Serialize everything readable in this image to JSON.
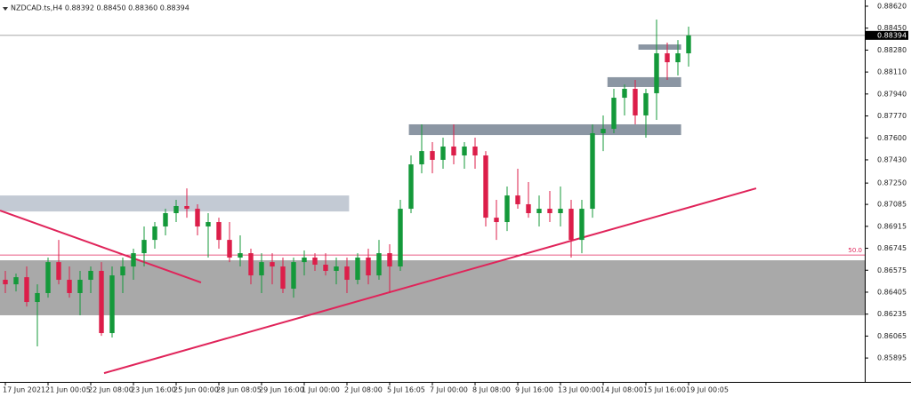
{
  "chart_data": {
    "type": "candlestick",
    "info": "NZDCAD.ts,H4  0.88392 0.88450 0.88360 0.88394",
    "current_price": 0.88394,
    "colors": {
      "up": "#14993a",
      "down": "#dc1e4a",
      "line": "#e0245a"
    },
    "xlim": [
      -0.5,
      80.5
    ],
    "ylim": [
      0.8571,
      0.88668
    ],
    "xticks": [
      {
        "value": 0,
        "label": "17 Jun 2021"
      },
      {
        "value": 4,
        "label": "21 Jun 00:05"
      },
      {
        "value": 8,
        "label": "22 Jun 08:00"
      },
      {
        "value": 12,
        "label": "23 Jun 16:00"
      },
      {
        "value": 16,
        "label": "25 Jun 00:00"
      },
      {
        "value": 20,
        "label": "28 Jun 08:05"
      },
      {
        "value": 24,
        "label": "29 Jun 16:00"
      },
      {
        "value": 28,
        "label": "1 Jul 00:00"
      },
      {
        "value": 32,
        "label": "2 Jul 08:00"
      },
      {
        "value": 36,
        "label": "5 Jul 16:05"
      },
      {
        "value": 40,
        "label": "7 Jul 00:00"
      },
      {
        "value": 44,
        "label": "8 Jul 08:00"
      },
      {
        "value": 48,
        "label": "9 Jul 16:00"
      },
      {
        "value": 52,
        "label": "13 Jul 00:00"
      },
      {
        "value": 56,
        "label": "14 Jul 08:00"
      },
      {
        "value": 60,
        "label": "15 Jul 16:00"
      },
      {
        "value": 64,
        "label": "19 Jul 00:05"
      }
    ],
    "yticks": [
      {
        "value": 0.8862,
        "label": "0.88620"
      },
      {
        "value": 0.8845,
        "label": "0.88450"
      },
      {
        "value": 0.8828,
        "label": "0.88280"
      },
      {
        "value": 0.8811,
        "label": "0.88110"
      },
      {
        "value": 0.8794,
        "label": "0.87940"
      },
      {
        "value": 0.8777,
        "label": "0.87770"
      },
      {
        "value": 0.876,
        "label": "0.87600"
      },
      {
        "value": 0.8743,
        "label": "0.87430"
      },
      {
        "value": 0.8725,
        "label": "0.87250"
      },
      {
        "value": 0.87085,
        "label": "0.87085"
      },
      {
        "value": 0.86915,
        "label": "0.86915"
      },
      {
        "value": 0.86745,
        "label": "0.86745"
      },
      {
        "value": 0.86575,
        "label": "0.86575"
      },
      {
        "value": 0.86405,
        "label": "0.86405"
      },
      {
        "value": 0.86235,
        "label": "0.86235"
      },
      {
        "value": 0.86065,
        "label": "0.86065"
      },
      {
        "value": 0.85895,
        "label": "0.85895"
      }
    ],
    "open": [
      0.86501,
      0.86466,
      0.86521,
      0.86329,
      0.86398,
      0.86638,
      0.86501,
      0.86398,
      0.86501,
      0.8657,
      0.86088,
      0.86535,
      0.86604,
      0.86707,
      0.8681,
      0.86914,
      0.87017,
      0.87072,
      0.87051,
      0.86914,
      0.86948,
      0.8681,
      0.86673,
      0.86707,
      0.86535,
      0.86638,
      0.86604,
      0.86432,
      0.86638,
      0.86673,
      0.86618,
      0.8657,
      0.86604,
      0.86501,
      0.86673,
      0.86535,
      0.86707,
      0.86604,
      0.87051,
      0.87395,
      0.87498,
      0.8743,
      0.87533,
      0.87464,
      0.87533,
      0.87464,
      0.86982,
      0.86948,
      0.87154,
      0.87086,
      0.87017,
      0.87051,
      0.87017,
      0.87051,
      0.8681,
      0.87051,
      0.87636,
      0.8767,
      0.87911,
      0.8798,
      0.87774,
      0.87946,
      0.88255,
      0.88186,
      0.88255
    ],
    "high": [
      0.8657,
      0.86549,
      0.86604,
      0.86466,
      0.86673,
      0.8681,
      0.86604,
      0.8657,
      0.86604,
      0.86638,
      0.86604,
      0.86673,
      0.86742,
      0.86914,
      0.86948,
      0.87051,
      0.8712,
      0.87209,
      0.87086,
      0.87017,
      0.86982,
      0.86948,
      0.86845,
      0.86742,
      0.86707,
      0.86707,
      0.86673,
      0.86673,
      0.86728,
      0.86707,
      0.86707,
      0.86673,
      0.86673,
      0.86707,
      0.86742,
      0.8681,
      0.86776,
      0.8712,
      0.87464,
      0.87705,
      0.87567,
      0.87602,
      0.87705,
      0.87567,
      0.87602,
      0.87498,
      0.8712,
      0.87223,
      0.87361,
      0.87258,
      0.87154,
      0.87189,
      0.87223,
      0.8712,
      0.8712,
      0.87705,
      0.87774,
      0.8798,
      0.88014,
      0.88049,
      0.8798,
      0.88517,
      0.88338,
      0.88358,
      0.88462
    ],
    "low": [
      0.86398,
      0.86411,
      0.86294,
      0.85985,
      0.86363,
      0.86466,
      0.86363,
      0.86226,
      0.86398,
      0.86067,
      0.86054,
      0.86398,
      0.86501,
      0.86604,
      0.86742,
      0.86845,
      0.86948,
      0.86982,
      0.86845,
      0.86673,
      0.86742,
      0.86638,
      0.86604,
      0.86466,
      0.86398,
      0.86466,
      0.86398,
      0.86363,
      0.86535,
      0.8657,
      0.86535,
      0.86466,
      0.86398,
      0.86466,
      0.86466,
      0.86501,
      0.86398,
      0.8657,
      0.87017,
      0.87326,
      0.87326,
      0.87361,
      0.87395,
      0.87361,
      0.87361,
      0.86914,
      0.8681,
      0.86879,
      0.87051,
      0.86982,
      0.86914,
      0.86948,
      0.86914,
      0.86673,
      0.86707,
      0.86982,
      0.87498,
      0.87636,
      0.87774,
      0.87705,
      0.87602,
      0.87739,
      0.88049,
      0.88083,
      0.88152
    ],
    "close": [
      0.86466,
      0.86521,
      0.86329,
      0.86398,
      0.86638,
      0.86501,
      0.86398,
      0.86501,
      0.8657,
      0.86088,
      0.86535,
      0.86604,
      0.86707,
      0.8681,
      0.86914,
      0.87017,
      0.87072,
      0.87051,
      0.86914,
      0.86948,
      0.8681,
      0.86673,
      0.86707,
      0.86535,
      0.86638,
      0.86604,
      0.86432,
      0.86638,
      0.86673,
      0.86618,
      0.8657,
      0.86604,
      0.86501,
      0.86673,
      0.86535,
      0.86707,
      0.86604,
      0.87051,
      0.87395,
      0.87498,
      0.8743,
      0.87533,
      0.87464,
      0.87533,
      0.87464,
      0.86982,
      0.86948,
      0.87154,
      0.87086,
      0.87017,
      0.87051,
      0.87017,
      0.87051,
      0.8681,
      0.87051,
      0.87636,
      0.8767,
      0.87911,
      0.8798,
      0.87774,
      0.87946,
      0.88255,
      0.88186,
      0.88255,
      0.88394
    ],
    "zones": [
      {
        "x": [
          -0.5,
          80.5
        ],
        "y": [
          0.86652,
          0.86226
        ],
        "color": "#a9a9a9"
      },
      {
        "x": [
          -0.5,
          32.2
        ],
        "y": [
          0.87154,
          0.8703
        ],
        "color": "#c3cad4"
      },
      {
        "x": [
          37.8,
          63.3
        ],
        "y": [
          0.87705,
          0.87622
        ],
        "color": "#8b96a3"
      },
      {
        "x": [
          56.4,
          63.3
        ],
        "y": [
          0.8807,
          0.87994
        ],
        "color": "#8b96a3"
      },
      {
        "x": [
          59.3,
          63.3
        ],
        "y": [
          0.88324,
          0.88283
        ],
        "color": "#8b96a3"
      }
    ],
    "trendlines": [
      {
        "x": [
          -0.5,
          18.33
        ],
        "y": [
          0.87037,
          0.8648
        ]
      },
      {
        "x": [
          9.25,
          70.33
        ],
        "y": [
          0.85778,
          0.87209
        ]
      }
    ],
    "level": {
      "value": 0.86693,
      "label": "50.0"
    }
  }
}
